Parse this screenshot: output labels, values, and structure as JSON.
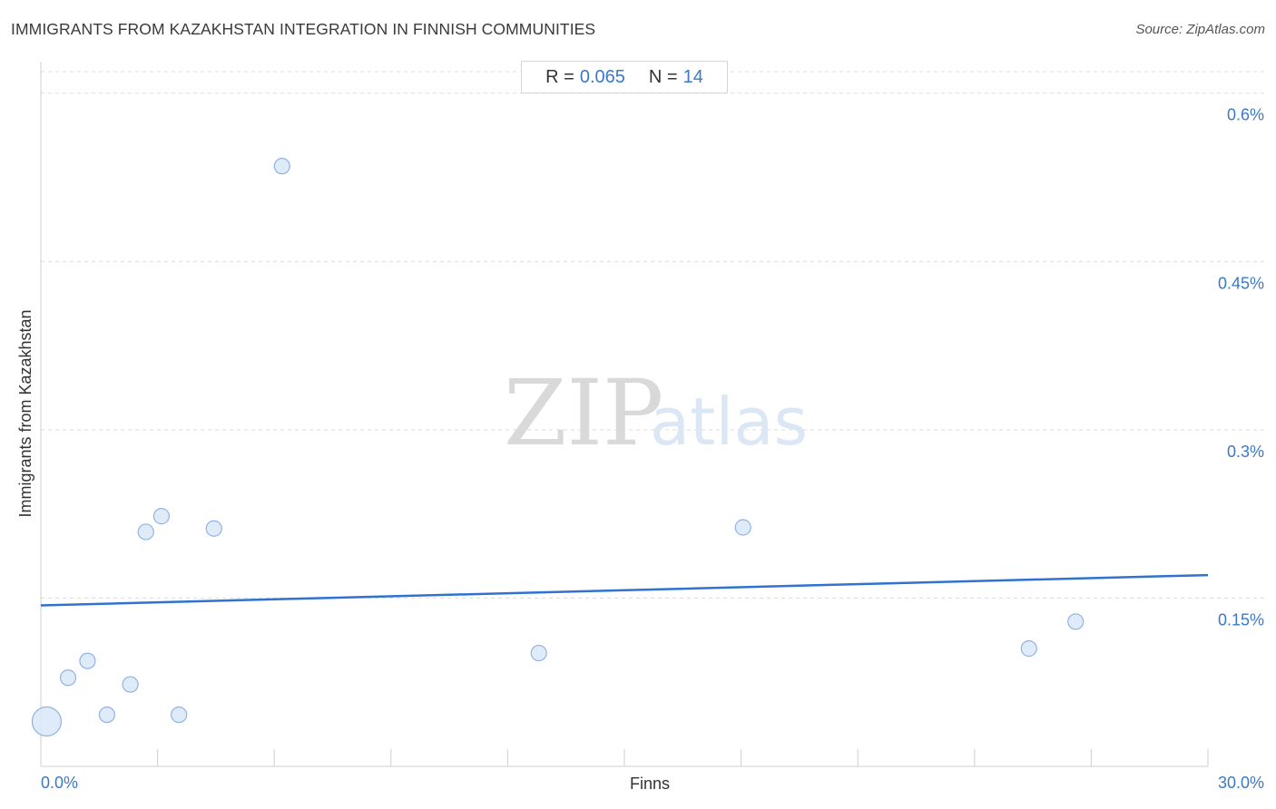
{
  "header": {
    "title": "IMMIGRANTS FROM KAZAKHSTAN INTEGRATION IN FINNISH COMMUNITIES",
    "source": "Source: ZipAtlas.com"
  },
  "stats": {
    "r_label": "R =",
    "r_value": "0.065",
    "n_label": "N =",
    "n_value": "14"
  },
  "watermark": {
    "zip": "ZIP",
    "atlas": "atlas"
  },
  "colors": {
    "accent": "#3b78c9",
    "trend": "#2f72cf",
    "point_fill": "#dbe7f8",
    "point_stroke": "#8fb3e3"
  },
  "chart_data": {
    "type": "scatter",
    "title": "IMMIGRANTS FROM KAZAKHSTAN INTEGRATION IN FINNISH COMMUNITIES",
    "xlabel": "Finns",
    "ylabel": "Immigrants from Kazakhstan",
    "xlim": [
      0,
      30
    ],
    "ylim": [
      0,
      0.62
    ],
    "x_tick_labels": [
      "0.0%",
      "30.0%"
    ],
    "y_ticks": [
      {
        "value": 0.15,
        "label": "0.15%"
      },
      {
        "value": 0.3,
        "label": "0.3%"
      },
      {
        "value": 0.45,
        "label": "0.45%"
      },
      {
        "value": 0.6,
        "label": "0.6%"
      }
    ],
    "grid": "horizontal-dashed",
    "points": [
      {
        "x": 0.15,
        "y": 0.04,
        "size": "large"
      },
      {
        "x": 0.7,
        "y": 0.079
      },
      {
        "x": 1.2,
        "y": 0.094
      },
      {
        "x": 1.7,
        "y": 0.046
      },
      {
        "x": 2.3,
        "y": 0.073
      },
      {
        "x": 2.7,
        "y": 0.209
      },
      {
        "x": 3.1,
        "y": 0.223
      },
      {
        "x": 3.55,
        "y": 0.046
      },
      {
        "x": 4.45,
        "y": 0.212
      },
      {
        "x": 6.2,
        "y": 0.535
      },
      {
        "x": 12.8,
        "y": 0.101
      },
      {
        "x": 18.05,
        "y": 0.213
      },
      {
        "x": 25.4,
        "y": 0.105
      },
      {
        "x": 26.6,
        "y": 0.129
      }
    ],
    "trendline": {
      "x": [
        0,
        30
      ],
      "y": [
        0.1435,
        0.1705
      ]
    },
    "stats": {
      "R": 0.065,
      "N": 14
    }
  }
}
